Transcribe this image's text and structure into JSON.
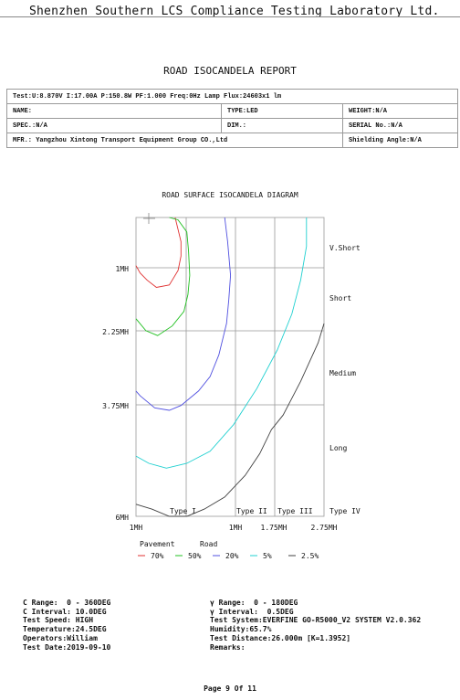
{
  "lab_name": "Shenzhen Southern LCS Compliance Testing Laboratory Ltd.",
  "report_title": "ROAD ISOCANDELA REPORT",
  "info": {
    "test_line": "Test:U:8.870V I:17.00A P:150.8W PF:1.000 Freq:0Hz  Lamp Flux:24603x1 lm",
    "name": "NAME:",
    "type": "TYPE:LED",
    "weight": "WEIGHT:N/A",
    "spec": "SPEC.:N/A",
    "dim": "DIM.:",
    "serial": "SERIAL No.:N/A",
    "mfr": "MFR.: Yangzhou Xintong Transport Equipment Group CO.,Ltd",
    "shielding": "Shielding Angle:N/A"
  },
  "chart_data": {
    "type": "line",
    "title": "ROAD SURFACE ISOCANDELA DIAGRAM",
    "y_tick_labels": [
      "1MH",
      "2.25MH",
      "3.75MH",
      "6MH"
    ],
    "x_tick_labels": [
      "1MH",
      "1MH",
      "1.75MH",
      "2.75MH"
    ],
    "right_labels": [
      "V.Short",
      "Short",
      "Medium",
      "Long"
    ],
    "bottom_type_labels": [
      "Type I",
      "Type II",
      "Type III",
      "Type IV"
    ],
    "legend_headers": [
      "Pavement",
      "Road"
    ],
    "colors": {
      "70%": "#e03030",
      "50%": "#20c020",
      "20%": "#5050e0",
      "5%": "#20d0d0",
      "2.5%": "#404040"
    },
    "series": [
      {
        "name": "70%",
        "points": [
          [
            1.1,
            0.0
          ],
          [
            1.15,
            0.25
          ],
          [
            1.2,
            0.5
          ],
          [
            1.2,
            0.8
          ],
          [
            1.15,
            1.1
          ],
          [
            1.0,
            1.4
          ],
          [
            0.78,
            1.45
          ],
          [
            0.62,
            1.3
          ],
          [
            0.5,
            1.15
          ],
          [
            0.43,
            1.0
          ]
        ]
      },
      {
        "name": "50%",
        "points": [
          [
            1.0,
            0.0
          ],
          [
            1.15,
            0.05
          ],
          [
            1.3,
            0.3
          ],
          [
            1.33,
            0.7
          ],
          [
            1.35,
            1.2
          ],
          [
            1.32,
            1.6
          ],
          [
            1.25,
            1.95
          ],
          [
            1.05,
            2.25
          ],
          [
            0.8,
            2.45
          ],
          [
            0.6,
            2.35
          ],
          [
            0.43,
            2.1
          ]
        ]
      },
      {
        "name": "20%",
        "points": [
          [
            1.95,
            0.0
          ],
          [
            2.0,
            0.5
          ],
          [
            2.05,
            1.2
          ],
          [
            2.02,
            1.7
          ],
          [
            1.98,
            2.2
          ],
          [
            1.85,
            2.85
          ],
          [
            1.7,
            3.3
          ],
          [
            1.5,
            3.6
          ],
          [
            1.2,
            3.9
          ],
          [
            1.0,
            4.0
          ],
          [
            0.75,
            3.95
          ],
          [
            0.5,
            3.7
          ],
          [
            0.43,
            3.6
          ]
        ]
      },
      {
        "name": "5%",
        "points": [
          [
            3.35,
            0.0
          ],
          [
            3.35,
            0.6
          ],
          [
            3.25,
            1.3
          ],
          [
            3.1,
            2.0
          ],
          [
            2.85,
            2.75
          ],
          [
            2.5,
            3.55
          ],
          [
            2.1,
            4.3
          ],
          [
            1.7,
            4.85
          ],
          [
            1.3,
            5.1
          ],
          [
            0.95,
            5.2
          ],
          [
            0.65,
            5.1
          ],
          [
            0.43,
            4.95
          ]
        ]
      },
      {
        "name": "2.5%",
        "points": [
          [
            3.65,
            2.2
          ],
          [
            3.55,
            2.6
          ],
          [
            3.4,
            3.0
          ],
          [
            3.25,
            3.4
          ],
          [
            3.1,
            3.75
          ],
          [
            2.95,
            4.1
          ],
          [
            2.75,
            4.4
          ],
          [
            2.55,
            4.9
          ],
          [
            2.3,
            5.35
          ],
          [
            1.95,
            5.8
          ],
          [
            1.6,
            6.05
          ],
          [
            1.3,
            6.2
          ],
          [
            1.0,
            6.2
          ],
          [
            0.7,
            6.05
          ],
          [
            0.43,
            5.95
          ]
        ]
      }
    ]
  },
  "footer": {
    "c_range": "C Range:  0 - 360DEG",
    "c_interval": "C Interval: 10.0DEG",
    "test_speed": "Test Speed: HIGH",
    "temperature": "Temperature:24.5DEG",
    "operators": "Operators:William",
    "test_date": "Test Date:2019-09-10",
    "g_range": "γ Range:  0 - 180DEG",
    "g_interval": "γ Interval:  0.5DEG",
    "test_system": "Test System:EVERFINE GO-R5000_V2 SYSTEM V2.0.362",
    "humidity": "Humidity:65.7%",
    "test_distance": "Test Distance:26.000m [K=1.3952]",
    "remarks": "Remarks:"
  },
  "page_number": "Page 9 Of 11"
}
